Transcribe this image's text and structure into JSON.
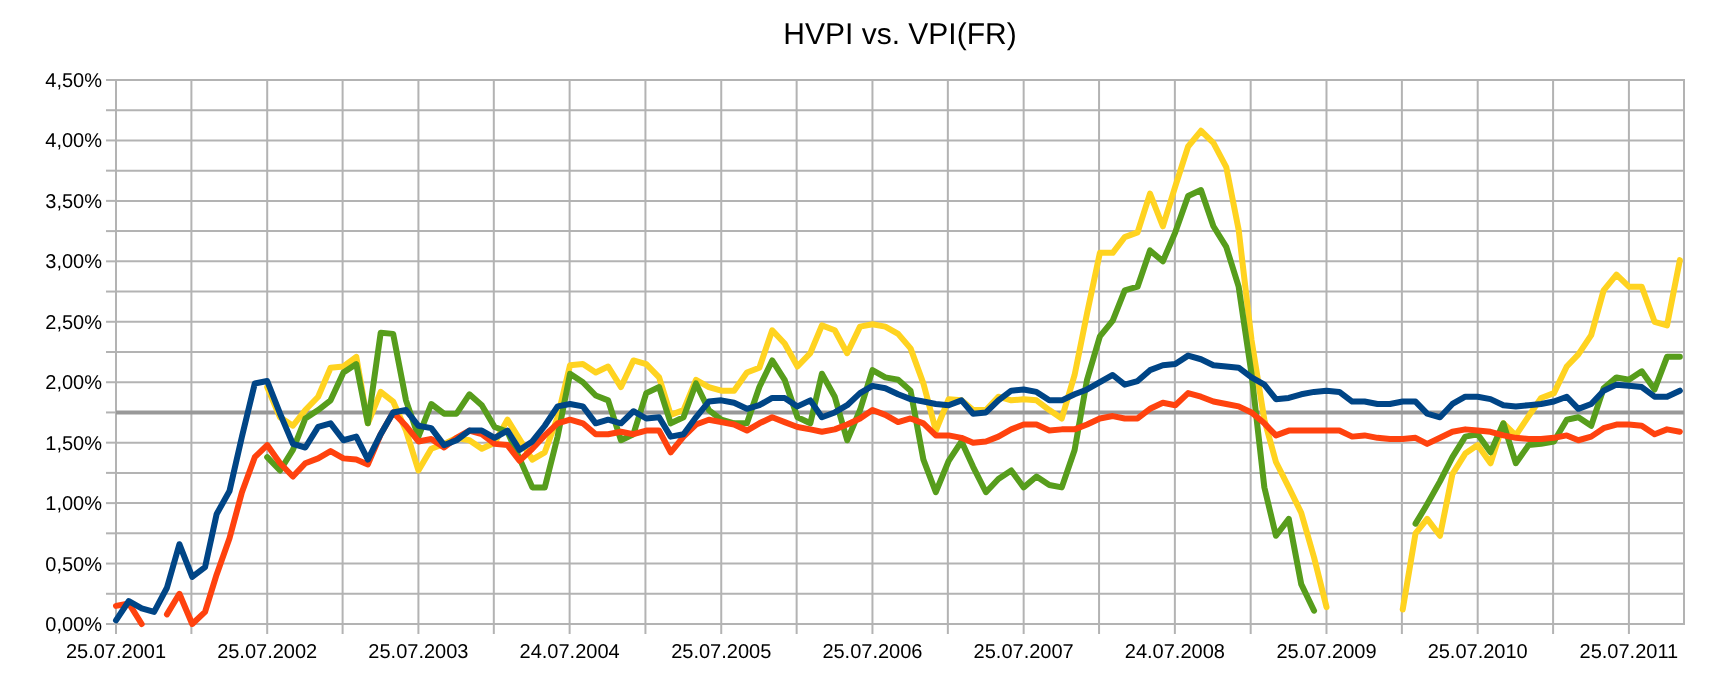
{
  "chart_data": {
    "type": "line",
    "title": "HVPI vs. VPI(FR)",
    "x": [
      "2001-07-25",
      "2001-08-25",
      "2001-09-25",
      "2001-10-25",
      "2001-11-25",
      "2001-12-25",
      "2002-01-25",
      "2002-02-25",
      "2002-03-25",
      "2002-04-25",
      "2002-05-25",
      "2002-06-25",
      "2002-07-25",
      "2002-08-25",
      "2002-09-25",
      "2002-10-25",
      "2002-11-25",
      "2002-12-25",
      "2003-01-25",
      "2003-02-25",
      "2003-03-25",
      "2003-04-25",
      "2003-05-25",
      "2003-06-25",
      "2003-07-25",
      "2003-08-25",
      "2003-09-25",
      "2003-10-25",
      "2003-11-25",
      "2003-12-25",
      "2004-01-25",
      "2004-02-25",
      "2004-03-25",
      "2004-04-25",
      "2004-05-25",
      "2004-06-25",
      "2004-07-25",
      "2004-08-25",
      "2004-09-25",
      "2004-10-25",
      "2004-11-25",
      "2004-12-25",
      "2005-01-25",
      "2005-02-25",
      "2005-03-25",
      "2005-04-25",
      "2005-05-25",
      "2005-06-25",
      "2005-07-25",
      "2005-08-25",
      "2005-09-25",
      "2005-10-25",
      "2005-11-25",
      "2005-12-25",
      "2006-01-25",
      "2006-02-25",
      "2006-03-25",
      "2006-04-25",
      "2006-05-25",
      "2006-06-25",
      "2006-07-25",
      "2006-08-25",
      "2006-09-25",
      "2006-10-25",
      "2006-11-25",
      "2006-12-25",
      "2007-01-25",
      "2007-02-25",
      "2007-03-25",
      "2007-04-25",
      "2007-05-25",
      "2007-06-25",
      "2007-07-25",
      "2007-08-25",
      "2007-09-25",
      "2007-10-25",
      "2007-11-25",
      "2007-12-25",
      "2008-01-25",
      "2008-02-25",
      "2008-03-25",
      "2008-04-25",
      "2008-05-25",
      "2008-06-25",
      "2008-07-25",
      "2008-08-25",
      "2008-09-25",
      "2008-10-25",
      "2008-11-25",
      "2008-12-25",
      "2009-01-25",
      "2009-02-25",
      "2009-03-25",
      "2009-04-25",
      "2009-05-25",
      "2009-06-25",
      "2009-07-25",
      "2009-08-25",
      "2009-09-25",
      "2009-10-25",
      "2009-11-25",
      "2009-12-25",
      "2010-01-25",
      "2010-02-25",
      "2010-03-25",
      "2010-04-25",
      "2010-05-25",
      "2010-06-25",
      "2010-07-25",
      "2010-08-25",
      "2010-09-25",
      "2010-10-25",
      "2010-11-25",
      "2010-12-25",
      "2011-01-25",
      "2011-02-25",
      "2011-03-25",
      "2011-04-25",
      "2011-05-25",
      "2011-06-25",
      "2011-07-25",
      "2011-08-25",
      "2011-09-25",
      "2011-10-25",
      "2011-11-25"
    ],
    "series": [
      {
        "color": "#ffd320",
        "values": [
          null,
          null,
          null,
          null,
          null,
          null,
          null,
          null,
          null,
          null,
          null,
          null,
          1.96,
          1.71,
          1.64,
          1.77,
          1.88,
          2.12,
          2.13,
          2.21,
          1.66,
          1.92,
          1.84,
          1.6,
          1.27,
          1.45,
          1.49,
          1.54,
          1.52,
          1.45,
          1.5,
          1.69,
          1.53,
          1.36,
          1.42,
          1.71,
          2.14,
          2.15,
          2.08,
          2.13,
          1.96,
          2.18,
          2.15,
          2.04,
          1.73,
          1.77,
          2.02,
          1.96,
          1.93,
          1.93,
          2.08,
          2.12,
          2.43,
          2.32,
          2.13,
          2.24,
          2.47,
          2.43,
          2.24,
          2.46,
          2.48,
          2.46,
          2.4,
          2.28,
          1.99,
          1.6,
          1.86,
          1.85,
          1.77,
          1.77,
          1.88,
          1.85,
          1.86,
          1.85,
          1.77,
          1.7,
          2.06,
          2.57,
          3.07,
          3.07,
          3.2,
          3.24,
          3.56,
          3.29,
          3.62,
          3.95,
          4.08,
          3.98,
          3.78,
          3.26,
          2.35,
          1.69,
          1.34,
          1.13,
          0.92,
          0.55,
          0.14,
          null,
          null,
          null,
          null,
          null,
          0.12,
          0.75,
          0.87,
          0.73,
          1.24,
          1.41,
          1.48,
          1.33,
          1.66,
          1.56,
          1.72,
          1.87,
          1.91,
          2.13,
          2.23,
          2.39,
          2.76,
          2.89,
          2.79,
          2.79,
          2.5,
          2.47,
          3.01
        ]
      },
      {
        "color": "#579d1c",
        "values": [
          null,
          null,
          null,
          null,
          null,
          null,
          null,
          null,
          null,
          null,
          null,
          null,
          1.38,
          1.27,
          1.44,
          1.7,
          1.77,
          1.85,
          2.08,
          2.15,
          1.66,
          2.41,
          2.4,
          1.85,
          1.55,
          1.82,
          1.74,
          1.74,
          1.9,
          1.81,
          1.63,
          1.59,
          1.37,
          1.13,
          1.13,
          1.55,
          2.07,
          2.0,
          1.89,
          1.85,
          1.52,
          1.57,
          1.91,
          1.96,
          1.66,
          1.71,
          1.99,
          1.77,
          1.69,
          1.66,
          1.66,
          1.96,
          2.18,
          2.02,
          1.71,
          1.66,
          2.07,
          1.88,
          1.52,
          1.77,
          2.1,
          2.04,
          2.02,
          1.93,
          1.36,
          1.09,
          1.35,
          1.51,
          1.3,
          1.09,
          1.2,
          1.27,
          1.13,
          1.22,
          1.15,
          1.13,
          1.44,
          2.02,
          2.38,
          2.51,
          2.76,
          2.79,
          3.09,
          3.0,
          3.24,
          3.54,
          3.59,
          3.29,
          3.12,
          2.79,
          2.07,
          1.13,
          0.73,
          0.87,
          0.33,
          0.11,
          null,
          null,
          null,
          null,
          null,
          null,
          null,
          0.83,
          0.99,
          1.18,
          1.38,
          1.55,
          1.57,
          1.42,
          1.66,
          1.33,
          1.48,
          1.49,
          1.51,
          1.69,
          1.71,
          1.64,
          1.95,
          2.04,
          2.02,
          2.09,
          1.94,
          2.21,
          2.21
        ]
      },
      {
        "color": "#ff420e",
        "values": [
          0.15,
          0.17,
          0.0,
          null,
          0.08,
          0.25,
          0.0,
          0.1,
          0.41,
          0.71,
          1.09,
          1.38,
          1.48,
          1.33,
          1.22,
          1.33,
          1.37,
          1.43,
          1.37,
          1.36,
          1.32,
          1.57,
          1.75,
          1.64,
          1.51,
          1.53,
          1.46,
          1.54,
          1.6,
          1.57,
          1.49,
          1.48,
          1.35,
          1.45,
          1.56,
          1.66,
          1.69,
          1.66,
          1.57,
          1.57,
          1.59,
          1.57,
          1.6,
          1.6,
          1.42,
          1.55,
          1.65,
          1.69,
          1.67,
          1.65,
          1.6,
          1.66,
          1.71,
          1.67,
          1.63,
          1.61,
          1.59,
          1.61,
          1.65,
          1.7,
          1.77,
          1.73,
          1.67,
          1.7,
          1.66,
          1.56,
          1.56,
          1.54,
          1.5,
          1.51,
          1.55,
          1.61,
          1.65,
          1.65,
          1.6,
          1.61,
          1.61,
          1.65,
          1.7,
          1.72,
          1.7,
          1.7,
          1.78,
          1.83,
          1.81,
          1.91,
          1.88,
          1.84,
          1.82,
          1.8,
          1.75,
          1.66,
          1.56,
          1.6,
          1.6,
          1.6,
          1.6,
          1.6,
          1.55,
          1.56,
          1.54,
          1.53,
          1.53,
          1.54,
          1.49,
          1.54,
          1.59,
          1.61,
          1.6,
          1.59,
          1.56,
          1.54,
          1.53,
          1.53,
          1.54,
          1.56,
          1.52,
          1.55,
          1.62,
          1.65,
          1.65,
          1.64,
          1.57,
          1.61,
          1.59
        ]
      },
      {
        "color": "#004586",
        "values": [
          0.03,
          0.19,
          0.13,
          0.1,
          0.3,
          0.66,
          0.39,
          0.47,
          0.91,
          1.1,
          1.55,
          1.99,
          2.01,
          1.74,
          1.49,
          1.46,
          1.63,
          1.66,
          1.52,
          1.55,
          1.36,
          1.57,
          1.75,
          1.77,
          1.64,
          1.62,
          1.48,
          1.52,
          1.6,
          1.6,
          1.54,
          1.6,
          1.44,
          1.51,
          1.64,
          1.8,
          1.82,
          1.8,
          1.66,
          1.69,
          1.66,
          1.76,
          1.7,
          1.71,
          1.55,
          1.57,
          1.71,
          1.84,
          1.85,
          1.83,
          1.78,
          1.81,
          1.87,
          1.87,
          1.8,
          1.85,
          1.71,
          1.75,
          1.81,
          1.91,
          1.97,
          1.95,
          1.9,
          1.86,
          1.84,
          1.82,
          1.81,
          1.85,
          1.74,
          1.75,
          1.85,
          1.93,
          1.94,
          1.92,
          1.85,
          1.85,
          1.9,
          1.94,
          2.0,
          2.06,
          1.98,
          2.01,
          2.1,
          2.14,
          2.15,
          2.22,
          2.19,
          2.14,
          2.13,
          2.12,
          2.04,
          1.98,
          1.86,
          1.87,
          1.9,
          1.92,
          1.93,
          1.92,
          1.84,
          1.84,
          1.82,
          1.82,
          1.84,
          1.84,
          1.74,
          1.71,
          1.82,
          1.88,
          1.88,
          1.86,
          1.81,
          1.8,
          1.81,
          1.82,
          1.84,
          1.88,
          1.78,
          1.82,
          1.93,
          1.98,
          1.97,
          1.96,
          1.88,
          1.88,
          1.93
        ]
      }
    ],
    "xlim": [
      "2001-07-25",
      "2011-12-05"
    ],
    "xticks": [
      {
        "value": "2001-07-25",
        "label": "25.07.2001"
      },
      {
        "value": "2002-01-23",
        "label": null
      },
      {
        "value": "2002-07-25",
        "label": "25.07.2002"
      },
      {
        "value": "2003-01-23",
        "label": null
      },
      {
        "value": "2003-07-25",
        "label": "25.07.2003"
      },
      {
        "value": "2004-01-23",
        "label": null
      },
      {
        "value": "2004-07-24",
        "label": "24.07.2004"
      },
      {
        "value": "2005-01-23",
        "label": null
      },
      {
        "value": "2005-07-25",
        "label": "25.07.2005"
      },
      {
        "value": "2006-01-23",
        "label": null
      },
      {
        "value": "2006-07-25",
        "label": "25.07.2006"
      },
      {
        "value": "2007-01-23",
        "label": null
      },
      {
        "value": "2007-07-25",
        "label": "25.07.2007"
      },
      {
        "value": "2008-01-23",
        "label": null
      },
      {
        "value": "2008-07-24",
        "label": "24.07.2008"
      },
      {
        "value": "2009-01-23",
        "label": null
      },
      {
        "value": "2009-07-25",
        "label": "25.07.2009"
      },
      {
        "value": "2010-01-23",
        "label": null
      },
      {
        "value": "2010-07-25",
        "label": "25.07.2010"
      },
      {
        "value": "2011-01-23",
        "label": null
      },
      {
        "value": "2011-07-25",
        "label": "25.07.2011"
      }
    ],
    "ylim": [
      0,
      4.5
    ],
    "yticks": [
      {
        "value": 0,
        "label": "0,00%"
      },
      {
        "value": 0.25,
        "label": null
      },
      {
        "value": 0.5,
        "label": "0,50%"
      },
      {
        "value": 0.75,
        "label": null
      },
      {
        "value": 1,
        "label": "1,00%"
      },
      {
        "value": 1.25,
        "label": null
      },
      {
        "value": 1.5,
        "label": "1,50%"
      },
      {
        "value": 1.75,
        "label": null
      },
      {
        "value": 2,
        "label": "2,00%"
      },
      {
        "value": 2.25,
        "label": null
      },
      {
        "value": 2.5,
        "label": "2,50%"
      },
      {
        "value": 2.75,
        "label": null
      },
      {
        "value": 3,
        "label": "3,00%"
      },
      {
        "value": 3.25,
        "label": null
      },
      {
        "value": 3.5,
        "label": "3,50%"
      },
      {
        "value": 3.75,
        "label": null
      },
      {
        "value": 4,
        "label": "4,00%"
      },
      {
        "value": 4.25,
        "label": null
      },
      {
        "value": 4.5,
        "label": "4,50%"
      }
    ],
    "ref_lines": [
      {
        "axis": "y",
        "value": 1.75,
        "color": "#999999"
      }
    ],
    "grid": true,
    "marker": "none",
    "line_style": "solid"
  }
}
